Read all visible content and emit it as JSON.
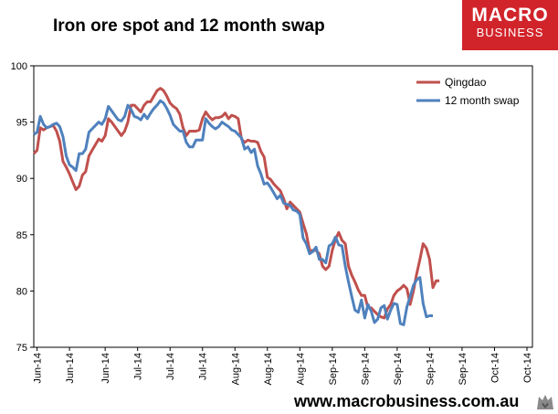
{
  "header": {
    "title": "Iron ore spot and 12 month swap"
  },
  "logo": {
    "line1": "MACRO",
    "line2": "BUSINESS"
  },
  "footer": {
    "url": "www.macrobusiness.com.au"
  },
  "colors": {
    "qingdao": "#c0504d",
    "swap": "#4f81bd",
    "brand": "#d1242a"
  },
  "chart_data": {
    "type": "line",
    "title": "Iron ore spot and 12 month swap",
    "ylim": [
      75,
      100
    ],
    "yticks": [
      75,
      80,
      85,
      90,
      95,
      100
    ],
    "x_index_range": [
      0,
      100
    ],
    "xtick_labels": [
      {
        "i": 1,
        "label": "Jun-14"
      },
      {
        "i": 11,
        "label": "Jun-14"
      },
      {
        "i": 22,
        "label": "Jun-14"
      },
      {
        "i": 32,
        "label": "Jul-14"
      },
      {
        "i": 42,
        "label": "Jul-14"
      },
      {
        "i": 52,
        "label": "Jul-14"
      },
      {
        "i": 62,
        "label": "Aug-14"
      },
      {
        "i": 72,
        "label": "Aug-14"
      },
      {
        "i": 82,
        "label": "Aug-14"
      },
      {
        "i": 92,
        "label": "Sep-14"
      },
      {
        "i": 102,
        "label": "Sep-14"
      },
      {
        "i": 112,
        "label": "Sep-14"
      },
      {
        "i": 122,
        "label": "Sep-14"
      },
      {
        "i": 132,
        "label": "Sep-14"
      },
      {
        "i": 142,
        "label": "Oct-14"
      },
      {
        "i": 152,
        "label": "Oct-14"
      }
    ],
    "legend_position": "top-right",
    "series": [
      {
        "name": "Qingdao",
        "points": [
          [
            0,
            92.2
          ],
          [
            1,
            92.5
          ],
          [
            2,
            94.5
          ],
          [
            3,
            94.3
          ],
          [
            4,
            94.5
          ],
          [
            5,
            94.6
          ],
          [
            6,
            94.7
          ],
          [
            7,
            94.2
          ],
          [
            8,
            93.3
          ],
          [
            9,
            91.5
          ],
          [
            10,
            91
          ],
          [
            11,
            90.4
          ],
          [
            12,
            89.7
          ],
          [
            13,
            89
          ],
          [
            14,
            89.3
          ],
          [
            15,
            90.3
          ],
          [
            16,
            90.6
          ],
          [
            17,
            92
          ],
          [
            18,
            92.5
          ],
          [
            19,
            93
          ],
          [
            20,
            93.5
          ],
          [
            21,
            93.3
          ],
          [
            22,
            93.8
          ],
          [
            23,
            95.3
          ],
          [
            24,
            95
          ],
          [
            25,
            94.6
          ],
          [
            26,
            94.2
          ],
          [
            27,
            93.8
          ],
          [
            28,
            94.2
          ],
          [
            29,
            95
          ],
          [
            30,
            96.5
          ],
          [
            31,
            96.5
          ],
          [
            32,
            96.2
          ],
          [
            33,
            95.9
          ],
          [
            34,
            96.5
          ],
          [
            35,
            96.8
          ],
          [
            36,
            96.8
          ],
          [
            37,
            97.3
          ],
          [
            38,
            97.8
          ],
          [
            39,
            98
          ],
          [
            40,
            97.8
          ],
          [
            41,
            97.3
          ],
          [
            42,
            96.7
          ],
          [
            43,
            96.4
          ],
          [
            44,
            96.2
          ],
          [
            45,
            95.7
          ],
          [
            46,
            94.5
          ],
          [
            47,
            93.8
          ],
          [
            48,
            94.2
          ],
          [
            49,
            94.2
          ],
          [
            50,
            94.2
          ],
          [
            51,
            94.3
          ],
          [
            52,
            95.3
          ],
          [
            53,
            95.9
          ],
          [
            54,
            95.5
          ],
          [
            55,
            95.2
          ],
          [
            56,
            95.4
          ],
          [
            57,
            95.4
          ],
          [
            58,
            95.5
          ],
          [
            59,
            95.8
          ],
          [
            60,
            95.3
          ],
          [
            61,
            95.6
          ],
          [
            62,
            95.5
          ],
          [
            63,
            95.3
          ],
          [
            64,
            93.5
          ],
          [
            65,
            93.2
          ],
          [
            66,
            93.4
          ],
          [
            67,
            93.3
          ],
          [
            68,
            93.3
          ],
          [
            69,
            93.2
          ],
          [
            70,
            92.4
          ],
          [
            71,
            91.9
          ],
          [
            72,
            90.1
          ],
          [
            73,
            89.9
          ],
          [
            74,
            89.5
          ],
          [
            75,
            89.2
          ],
          [
            76,
            88.9
          ],
          [
            77,
            88.2
          ],
          [
            78,
            87.3
          ],
          [
            79,
            87.9
          ],
          [
            80,
            87.6
          ],
          [
            81,
            87.3
          ],
          [
            82,
            87
          ],
          [
            83,
            86
          ],
          [
            84,
            85.1
          ],
          [
            85,
            83.6
          ],
          [
            86,
            83.6
          ],
          [
            87,
            83.6
          ],
          [
            88,
            83.3
          ],
          [
            89,
            82.2
          ],
          [
            90,
            81.9
          ],
          [
            91,
            82.2
          ],
          [
            92,
            83.6
          ],
          [
            93,
            84.6
          ],
          [
            94,
            85.2
          ],
          [
            95,
            84.5
          ],
          [
            96,
            84.2
          ],
          [
            97,
            82.2
          ],
          [
            98,
            81.4
          ],
          [
            99,
            80.8
          ],
          [
            100,
            80.1
          ],
          [
            101,
            79.6
          ],
          [
            102,
            79.6
          ],
          [
            103,
            78.5
          ],
          [
            104,
            78.5
          ],
          [
            105,
            78.2
          ],
          [
            106,
            77.9
          ],
          [
            107,
            77.7
          ],
          [
            108,
            77.6
          ],
          [
            109,
            78.4
          ],
          [
            110,
            78.8
          ],
          [
            111,
            79.6
          ],
          [
            112,
            80.0
          ],
          [
            113,
            80.2
          ],
          [
            114,
            80.5
          ],
          [
            115,
            80.2
          ],
          [
            116,
            78.8
          ],
          [
            117,
            80.0
          ],
          [
            118,
            81.5
          ],
          [
            119,
            82.8
          ],
          [
            120,
            84.2
          ],
          [
            121,
            83.8
          ],
          [
            122,
            82.8
          ],
          [
            123,
            80.3
          ],
          [
            124,
            80.9
          ],
          [
            125,
            80.9
          ]
        ]
      },
      {
        "name": "12 month swap",
        "points": [
          [
            0,
            93.9
          ],
          [
            1,
            94.1
          ],
          [
            2,
            95.5
          ],
          [
            3,
            94.8
          ],
          [
            4,
            94.5
          ],
          [
            5,
            94.6
          ],
          [
            6,
            94.8
          ],
          [
            7,
            94.9
          ],
          [
            8,
            94.6
          ],
          [
            9,
            93.7
          ],
          [
            10,
            92
          ],
          [
            11,
            91.2
          ],
          [
            12,
            91
          ],
          [
            13,
            90.7
          ],
          [
            14,
            92.2
          ],
          [
            15,
            92.2
          ],
          [
            16,
            92.6
          ],
          [
            17,
            94.1
          ],
          [
            18,
            94.4
          ],
          [
            19,
            94.7
          ],
          [
            20,
            95
          ],
          [
            21,
            94.8
          ],
          [
            22,
            95.3
          ],
          [
            23,
            96.4
          ],
          [
            24,
            96
          ],
          [
            25,
            95.6
          ],
          [
            26,
            95.2
          ],
          [
            27,
            95.1
          ],
          [
            28,
            95.5
          ],
          [
            29,
            96.5
          ],
          [
            30,
            96.1
          ],
          [
            31,
            95.5
          ],
          [
            32,
            95.4
          ],
          [
            33,
            95.2
          ],
          [
            34,
            95.7
          ],
          [
            35,
            95.3
          ],
          [
            36,
            95.8
          ],
          [
            37,
            96.2
          ],
          [
            38,
            96.5
          ],
          [
            39,
            96.9
          ],
          [
            40,
            96.7
          ],
          [
            41,
            96.2
          ],
          [
            42,
            95.6
          ],
          [
            43,
            94.8
          ],
          [
            44,
            94.5
          ],
          [
            45,
            94.2
          ],
          [
            46,
            94.2
          ],
          [
            47,
            93.2
          ],
          [
            48,
            92.8
          ],
          [
            49,
            92.8
          ],
          [
            50,
            93.4
          ],
          [
            51,
            93.4
          ],
          [
            52,
            93.4
          ],
          [
            53,
            95.3
          ],
          [
            54,
            94.9
          ],
          [
            55,
            94.6
          ],
          [
            56,
            94.4
          ],
          [
            57,
            94.6
          ],
          [
            58,
            95
          ],
          [
            59,
            94.8
          ],
          [
            60,
            94.6
          ],
          [
            61,
            94.3
          ],
          [
            62,
            94.2
          ],
          [
            63,
            93.9
          ],
          [
            64,
            93.6
          ],
          [
            65,
            92.6
          ],
          [
            66,
            92.8
          ],
          [
            67,
            92.3
          ],
          [
            68,
            92.6
          ],
          [
            69,
            91.1
          ],
          [
            70,
            90.4
          ],
          [
            71,
            89.5
          ],
          [
            72,
            89.6
          ],
          [
            73,
            89.2
          ],
          [
            74,
            88.7
          ],
          [
            75,
            88.2
          ],
          [
            76,
            88.5
          ],
          [
            77,
            87.8
          ],
          [
            78,
            87.7
          ],
          [
            79,
            87.6
          ],
          [
            80,
            87.2
          ],
          [
            81,
            87.1
          ],
          [
            82,
            86.8
          ],
          [
            83,
            84.7
          ],
          [
            84,
            84.2
          ],
          [
            85,
            83.3
          ],
          [
            86,
            83.5
          ],
          [
            87,
            83.9
          ],
          [
            88,
            82.8
          ],
          [
            89,
            82.8
          ],
          [
            90,
            82.5
          ],
          [
            91,
            84
          ],
          [
            92,
            84.2
          ],
          [
            93,
            84.8
          ],
          [
            94,
            84.1
          ],
          [
            95,
            84
          ],
          [
            96,
            82.2
          ],
          [
            97,
            80.8
          ],
          [
            98,
            79.5
          ],
          [
            99,
            78.3
          ],
          [
            100,
            78.1
          ],
          [
            101,
            79.2
          ],
          [
            102,
            77.6
          ],
          [
            103,
            78.8
          ],
          [
            104,
            78.2
          ],
          [
            105,
            77.2
          ],
          [
            106,
            77.5
          ],
          [
            107,
            78.5
          ],
          [
            108,
            78.7
          ],
          [
            109,
            77.5
          ],
          [
            110,
            78.3
          ],
          [
            111,
            78.9
          ],
          [
            112,
            78.8
          ],
          [
            113,
            77.1
          ],
          [
            114,
            77.0
          ],
          [
            115,
            78.6
          ],
          [
            116,
            79.5
          ],
          [
            117,
            80.5
          ],
          [
            118,
            81
          ],
          [
            119,
            81.2
          ],
          [
            120,
            78.9
          ],
          [
            121,
            77.7
          ],
          [
            122,
            77.8
          ],
          [
            123,
            77.8
          ]
        ]
      }
    ]
  }
}
